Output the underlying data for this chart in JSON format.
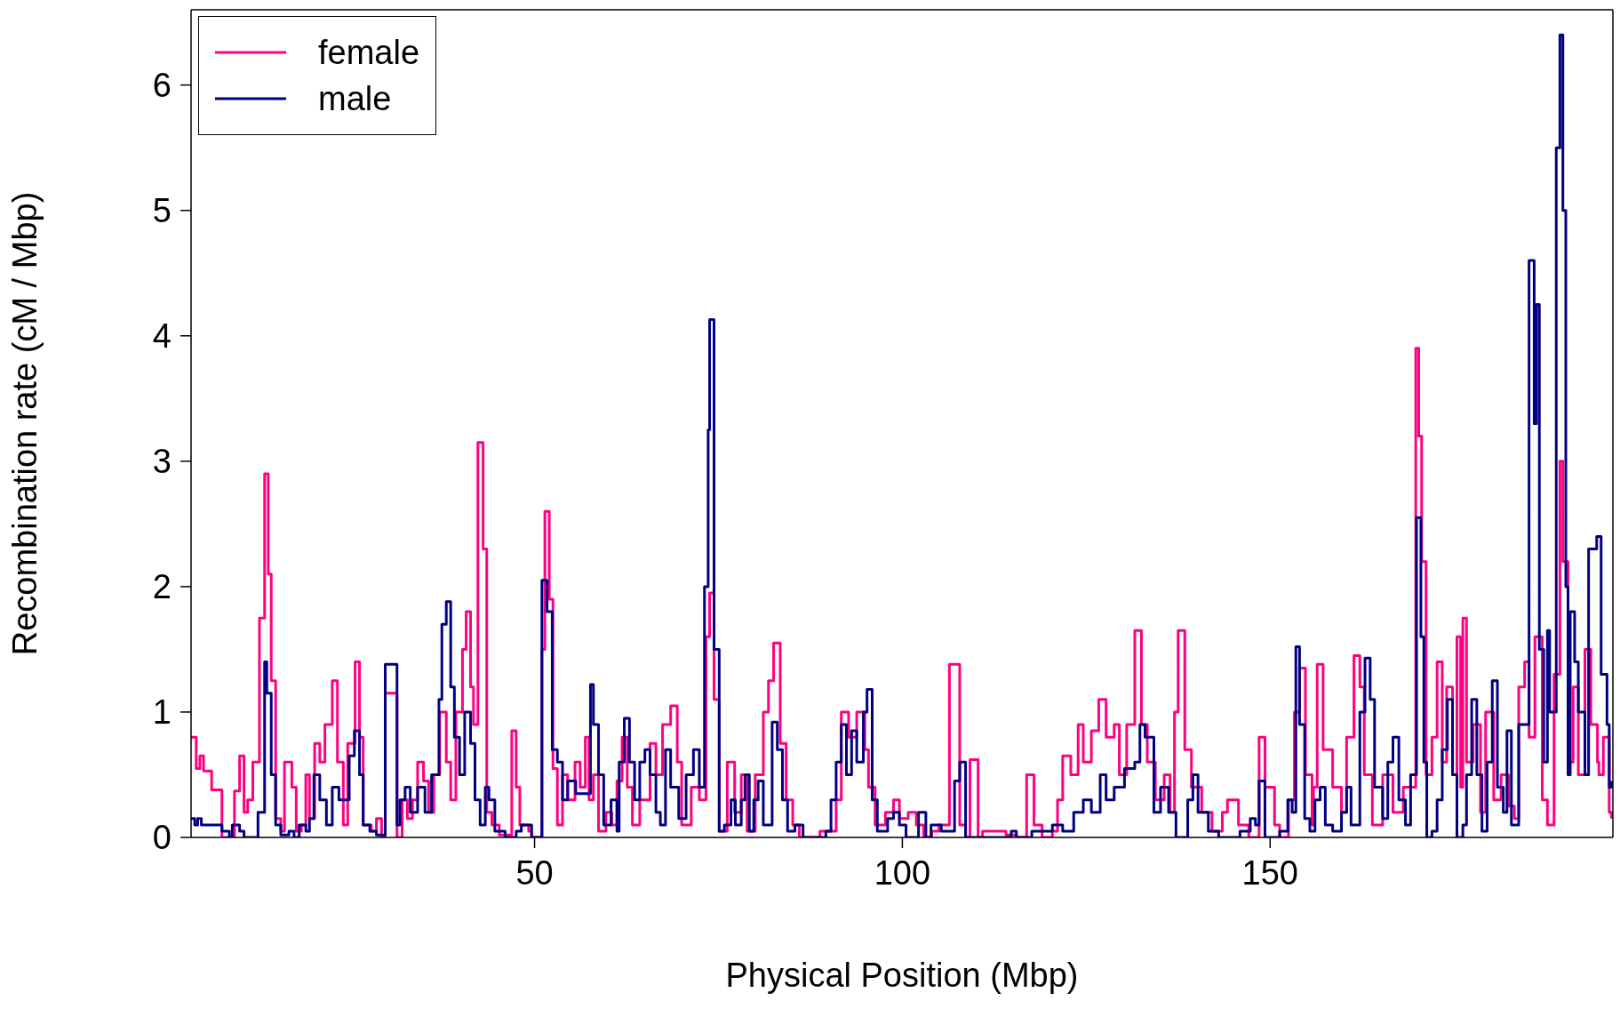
{
  "chart_data": {
    "type": "step",
    "xlabel": "Physical Position (Mbp)",
    "ylabel": "Recombination rate (cM / Mbp)",
    "xlim": [
      3.3,
      196.6
    ],
    "ylim": [
      0,
      6.6
    ],
    "xticks": [
      50,
      100,
      150
    ],
    "yticks": [
      0,
      1,
      2,
      3,
      4,
      5,
      6
    ],
    "legend": "top left",
    "line_style": "solid",
    "marker": "none",
    "series": [
      {
        "name": "female",
        "color": "#ff0080",
        "x": [
          3.3,
          4,
          4.5,
          5,
          6.1,
          7.5,
          9.2,
          9.9,
          10.5,
          11,
          11.7,
          12.6,
          13.3,
          13.8,
          14.2,
          14.8,
          15.5,
          16,
          17,
          17.6,
          18.3,
          18.9,
          19.4,
          20.1,
          20.8,
          21.5,
          22.5,
          23.2,
          24,
          24.6,
          25.6,
          26.2,
          26.7,
          27.8,
          28.5,
          29.2,
          29.7,
          31.3,
          32,
          32.7,
          33.4,
          34.1,
          34.9,
          35.6,
          36.3,
          37.1,
          38,
          38.6,
          39.3,
          40.2,
          40.7,
          41.3,
          41.7,
          42.3,
          43,
          43.5,
          44.2,
          45.2,
          46.9,
          47.5,
          48,
          49.2,
          49.6,
          51,
          51.4,
          52,
          52.5,
          53.1,
          53.8,
          54.5,
          55.5,
          56.2,
          56.9,
          57.4,
          58,
          58.7,
          59.7,
          60.5,
          61.2,
          61.9,
          62.6,
          63.3,
          64.3,
          65.7,
          66.5,
          67.4,
          68.5,
          69.4,
          70,
          71.3,
          72.4,
          73.3,
          73.8,
          74.4,
          75.1,
          76.2,
          77.2,
          78.1,
          78.9,
          80,
          81.1,
          81.8,
          82.5,
          83.4,
          84.2,
          85.1,
          86,
          88.8,
          91,
          91.7,
          92.7,
          93.8,
          94.9,
          95.4,
          96.3,
          97.7,
          98.8,
          99.6,
          100.8,
          101.9,
          102.9,
          104,
          105,
          106.4,
          107.8,
          108.6,
          109.2,
          110.3,
          110.9,
          114.1,
          115.5,
          116.9,
          117.9,
          119,
          120.4,
          121.1,
          121.8,
          122.9,
          123.9,
          124.6,
          125.7,
          126.7,
          127.7,
          128.8,
          129.5,
          130.5,
          131.6,
          132.5,
          133.3,
          134.4,
          135.6,
          136.4,
          137,
          137.5,
          138.4,
          139.3,
          140.7,
          142.1,
          143.5,
          144.2,
          145.7,
          147.1,
          148.5,
          149.3,
          150.6,
          151.3,
          152.5,
          153.3,
          154,
          154.8,
          155.7,
          155.9,
          156.4,
          157.2,
          158.5,
          159.7,
          160.4,
          161.4,
          162.2,
          162.8,
          163.9,
          165.3,
          166.7,
          168.1,
          169.8,
          170.2,
          170.6,
          171.2,
          172,
          172.7,
          173.4,
          174,
          174.8,
          175.4,
          175.9,
          176.2,
          176.7,
          177.6,
          178.6,
          179.3,
          180.4,
          181.4,
          182.4,
          183.2,
          183.8,
          184.6,
          185.2,
          186,
          187,
          187.7,
          188.6,
          189.4,
          189.8,
          190.5,
          191.2,
          191.9,
          192.8,
          193.6,
          194.5,
          194.7,
          195.3,
          196.1,
          196.4
        ],
        "values": [
          0.8,
          0.55,
          0.65,
          0.53,
          0.38,
          0,
          0.37,
          0.65,
          0.2,
          0.3,
          0.6,
          1.75,
          2.9,
          2.1,
          1.25,
          0.15,
          0.05,
          0.6,
          0.4,
          0.05,
          0.1,
          0.5,
          0.15,
          0.75,
          0.6,
          0.9,
          1.25,
          0.6,
          0.1,
          0.75,
          1.4,
          0.8,
          0.1,
          0.05,
          0.15,
          0,
          1.15,
          0,
          0.3,
          0.15,
          0.3,
          0.6,
          0.45,
          0.2,
          0.5,
          1,
          0.6,
          0.3,
          1,
          1.5,
          1.8,
          1.2,
          0.9,
          3.15,
          2.3,
          0.2,
          0.1,
          0.02,
          0.85,
          0.4,
          0.1,
          0.05,
          0,
          1.5,
          2.6,
          1.9,
          0.55,
          0.1,
          0.5,
          0.3,
          0.6,
          0.4,
          0.8,
          0.3,
          0.5,
          0.05,
          0.2,
          0.1,
          0.45,
          0.8,
          0.4,
          0.1,
          0.3,
          0.75,
          0.5,
          0.9,
          1.05,
          0.6,
          0.1,
          0.4,
          0.3,
          1.6,
          1.95,
          1.1,
          0.05,
          0.6,
          0.2,
          0.5,
          0.05,
          0.5,
          1,
          1.25,
          1.55,
          0.75,
          0.3,
          0.1,
          0,
          0.05,
          0.3,
          1,
          0.8,
          1,
          0.7,
          0.4,
          0.1,
          0.2,
          0.3,
          0.15,
          0.2,
          0.1,
          0,
          0.05,
          0.1,
          1.38,
          0.1,
          0,
          0.62,
          0,
          0.05,
          0.02,
          0,
          0.5,
          0.1,
          0,
          0.05,
          0.3,
          0.65,
          0.5,
          0.9,
          0.6,
          0.85,
          1.1,
          0.8,
          0.9,
          0.5,
          0.9,
          1.65,
          0.9,
          0.6,
          0.3,
          0.5,
          0.2,
          1,
          1.65,
          0.7,
          0.4,
          0.2,
          0.05,
          0.2,
          0.3,
          0.1,
          0,
          0.8,
          0.4,
          0.1,
          0,
          0.3,
          1,
          1.35,
          0.5,
          0.1,
          0.4,
          1.38,
          0.7,
          0.4,
          0.2,
          0.8,
          1.45,
          1.2,
          0.5,
          0.1,
          0.5,
          0.2,
          0.4,
          3.9,
          3.2,
          2.2,
          0.5,
          0.8,
          1.4,
          0.6,
          1.2,
          0.5,
          1.6,
          0.4,
          1.75,
          0.6,
          0.9,
          0.2,
          1,
          0.3,
          0.5,
          0.25,
          0.15,
          1.2,
          1.4,
          0.8,
          1.6,
          0.3,
          0.1,
          1.3,
          3,
          2.2,
          0.6,
          1.2,
          0.5,
          1.5,
          0.9,
          0.6,
          0.5,
          0.8,
          0.2,
          0.15
        ]
      },
      {
        "name": "male",
        "color": "#000080",
        "x": [
          3.3,
          3.8,
          4.2,
          4.7,
          7.5,
          8.5,
          8.9,
          9.9,
          10.5,
          11.4,
          12.4,
          13.3,
          13.6,
          14.2,
          14.8,
          15.5,
          16.6,
          17.3,
          18,
          18.9,
          19.4,
          20,
          20.8,
          21.7,
          22.5,
          23.4,
          24.8,
          25.5,
          26.2,
          26.7,
          27.6,
          28.5,
          29.7,
          31.3,
          31.7,
          32.4,
          33.1,
          34.1,
          35.1,
          36,
          37,
          37.4,
          38,
          38.6,
          39.1,
          39.8,
          40.5,
          41.3,
          41.9,
          42.6,
          43.3,
          43.8,
          44.6,
          46,
          47.5,
          48.2,
          49.6,
          51,
          51.7,
          52.4,
          53.1,
          53.8,
          54.5,
          55.6,
          57.6,
          58,
          58.7,
          59.4,
          60.4,
          61.2,
          61.5,
          62.2,
          62.9,
          63.6,
          64.3,
          65,
          65.7,
          66.5,
          67.1,
          67.8,
          68.5,
          69.6,
          70.6,
          71.6,
          72.4,
          73.1,
          73.6,
          73.8,
          74.4,
          75.1,
          75.8,
          76.7,
          77.3,
          78.1,
          78.6,
          79.2,
          79.8,
          80.4,
          81.1,
          82.3,
          83,
          83.7,
          84.4,
          85.4,
          86.5,
          89.6,
          90.3,
          91,
          91.7,
          92.4,
          93.1,
          93.8,
          94.7,
          95.2,
          95.9,
          96.6,
          98,
          98.8,
          99.6,
          100.5,
          102.2,
          103.2,
          103.9,
          105.3,
          107.1,
          107.8,
          108.6,
          114.8,
          115.5,
          117.6,
          120.4,
          121.8,
          123.3,
          124.6,
          125.7,
          126.9,
          127.7,
          128.8,
          130.2,
          131.6,
          132.3,
          133,
          134.2,
          135.1,
          136.2,
          137.2,
          138.8,
          139.5,
          140.2,
          141.6,
          143,
          145.9,
          147.3,
          148,
          148.5,
          149.3,
          151.3,
          152.4,
          153,
          153.5,
          154,
          154.7,
          155.4,
          156.1,
          156.8,
          157.5,
          158.5,
          159.7,
          160.4,
          161,
          162.2,
          162.9,
          163.6,
          164.2,
          165.3,
          166,
          166.7,
          167.5,
          168.4,
          169.1,
          169.9,
          170.5,
          170.9,
          171.3,
          172,
          172.7,
          173.4,
          174.1,
          174.8,
          175.4,
          176.2,
          176.7,
          177.4,
          178.1,
          178.8,
          179.5,
          180.2,
          180.9,
          181.7,
          182.2,
          182.8,
          183.8,
          185.2,
          185.9,
          186.2,
          186.6,
          187.2,
          187.7,
          188,
          188.9,
          189.4,
          189.8,
          190.2,
          190.5,
          190.8,
          191.4,
          191.9,
          192.8,
          193.3,
          194.4,
          195,
          195.8,
          196.1,
          196.4
        ],
        "values": [
          0.15,
          0.1,
          0.15,
          0.1,
          0.05,
          0,
          0.1,
          0.05,
          0,
          0,
          0.2,
          1.4,
          1.15,
          0.5,
          0.1,
          0.02,
          0.05,
          0,
          0.1,
          0.05,
          0.15,
          0.5,
          0.3,
          0.1,
          0.4,
          0.3,
          0.65,
          0.85,
          0.5,
          0.1,
          0.05,
          0.02,
          1.38,
          0.1,
          0.3,
          0.4,
          0.2,
          0.4,
          0.2,
          0.5,
          1.1,
          1.7,
          1.88,
          1.2,
          0.8,
          0.5,
          1,
          0.75,
          0.3,
          0.1,
          0.4,
          0.3,
          0.05,
          0,
          0.05,
          0.1,
          0,
          2.05,
          1.8,
          0.7,
          0.6,
          0.3,
          0.45,
          0.35,
          1.22,
          0.9,
          0.5,
          0.1,
          0.3,
          0.05,
          0.6,
          0.95,
          0.6,
          0.3,
          0.6,
          0.7,
          0.5,
          0.2,
          0.1,
          0.7,
          0.4,
          0.15,
          0.5,
          0.7,
          0.4,
          2,
          3.25,
          4.13,
          1.5,
          0.05,
          0.1,
          0.3,
          0.1,
          0.3,
          0.5,
          0.05,
          0.3,
          0.45,
          0.1,
          0.92,
          0.7,
          0.3,
          0.05,
          0.1,
          0,
          0.05,
          0.3,
          0.6,
          0.9,
          0.5,
          0.85,
          0.6,
          1,
          1.18,
          0.3,
          0.05,
          0.15,
          0.2,
          0.1,
          0,
          0.2,
          0,
          0.1,
          0.05,
          0.45,
          0.6,
          0,
          0.05,
          0,
          0.05,
          0.1,
          0.05,
          0.2,
          0.3,
          0.2,
          0.5,
          0.3,
          0.4,
          0.55,
          0.6,
          0.9,
          0.8,
          0.2,
          0.4,
          0.2,
          0,
          0.3,
          0.5,
          0.2,
          0.05,
          0,
          0.05,
          0.15,
          0.1,
          0.45,
          0,
          0.05,
          0.3,
          0.2,
          1.52,
          0.9,
          0.15,
          0.05,
          0.3,
          0.4,
          0.1,
          0.05,
          0.2,
          0.4,
          0.1,
          1,
          1.43,
          1.1,
          0.4,
          0.15,
          0.6,
          0.8,
          0.3,
          0.1,
          0.5,
          2.55,
          1.6,
          0.6,
          0,
          0.05,
          0.3,
          0.7,
          1.1,
          0.5,
          0,
          0.1,
          0.5,
          1.1,
          0.5,
          0.05,
          0.6,
          1.25,
          0.4,
          0.2,
          0.85,
          0.1,
          0.9,
          4.6,
          3.3,
          4.25,
          1.5,
          0.6,
          1.65,
          1,
          5.5,
          6.4,
          5,
          2,
          0.5,
          1.8,
          1.4,
          1,
          0.5,
          2.3,
          2.4,
          1.3,
          0.9,
          0.4,
          0.45
        ]
      }
    ]
  }
}
